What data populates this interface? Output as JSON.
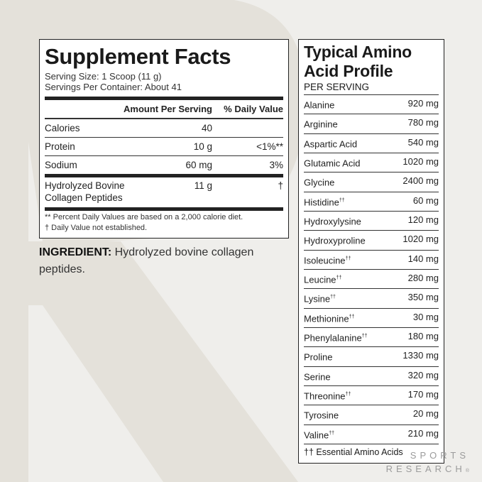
{
  "supplement_facts": {
    "title": "Supplement Facts",
    "serving_size": "Serving Size: 1 Scoop (11 g)",
    "servings_per_container": "Servings Per Container: About 41",
    "header": {
      "amount": "Amount Per Serving",
      "dv": "% Daily Value"
    },
    "rows": [
      {
        "name": "Calories",
        "amount": "40",
        "dv": ""
      },
      {
        "name": "Protein",
        "amount": "10 g",
        "dv": "<1%**"
      },
      {
        "name": "Sodium",
        "amount": "60 mg",
        "dv": "3%"
      },
      {
        "name": "Hydrolyzed Bovine Collagen Peptides",
        "amount": "11 g",
        "dv": "†"
      }
    ],
    "footnotes": [
      "** Percent Daily Values are based on a 2,000 calorie diet.",
      "†  Daily Value not established."
    ]
  },
  "ingredient": {
    "label": "INGREDIENT:",
    "text": " Hydrolyzed bovine collagen peptides."
  },
  "amino_profile": {
    "title": "Typical Amino Acid Profile",
    "subtitle": "PER SERVING",
    "rows": [
      {
        "name": "Alanine",
        "mark": "",
        "amount": "920 mg"
      },
      {
        "name": "Arginine",
        "mark": "",
        "amount": "780 mg"
      },
      {
        "name": "Aspartic Acid",
        "mark": "",
        "amount": "540 mg"
      },
      {
        "name": "Glutamic Acid",
        "mark": "",
        "amount": "1020 mg"
      },
      {
        "name": "Glycine",
        "mark": "",
        "amount": "2400 mg"
      },
      {
        "name": "Histidine",
        "mark": "††",
        "amount": "60 mg"
      },
      {
        "name": "Hydroxylysine",
        "mark": "",
        "amount": "120 mg"
      },
      {
        "name": "Hydroxyproline",
        "mark": "",
        "amount": "1020 mg"
      },
      {
        "name": "Isoleucine",
        "mark": "††",
        "amount": "140 mg"
      },
      {
        "name": "Leucine",
        "mark": "††",
        "amount": "280 mg"
      },
      {
        "name": "Lysine",
        "mark": "††",
        "amount": "350 mg"
      },
      {
        "name": "Methionine",
        "mark": "††",
        "amount": "30 mg"
      },
      {
        "name": "Phenylalanine",
        "mark": "††",
        "amount": "180 mg"
      },
      {
        "name": "Proline",
        "mark": "",
        "amount": "1330 mg"
      },
      {
        "name": "Serine",
        "mark": "",
        "amount": "320 mg"
      },
      {
        "name": "Threonine",
        "mark": "††",
        "amount": "170 mg"
      },
      {
        "name": "Tyrosine",
        "mark": "",
        "amount": "20 mg"
      },
      {
        "name": "Valine",
        "mark": "††",
        "amount": "210 mg"
      }
    ],
    "footnote": "†† Essential Amino Acids"
  },
  "brand": {
    "line1": "SPORTS",
    "line2": "RESEARCH",
    "mark": "®"
  },
  "colors": {
    "background": "#efeeeb",
    "watermark": "#e3e0d9",
    "text": "#1a1a1a",
    "brand": "#9b9b9b"
  }
}
